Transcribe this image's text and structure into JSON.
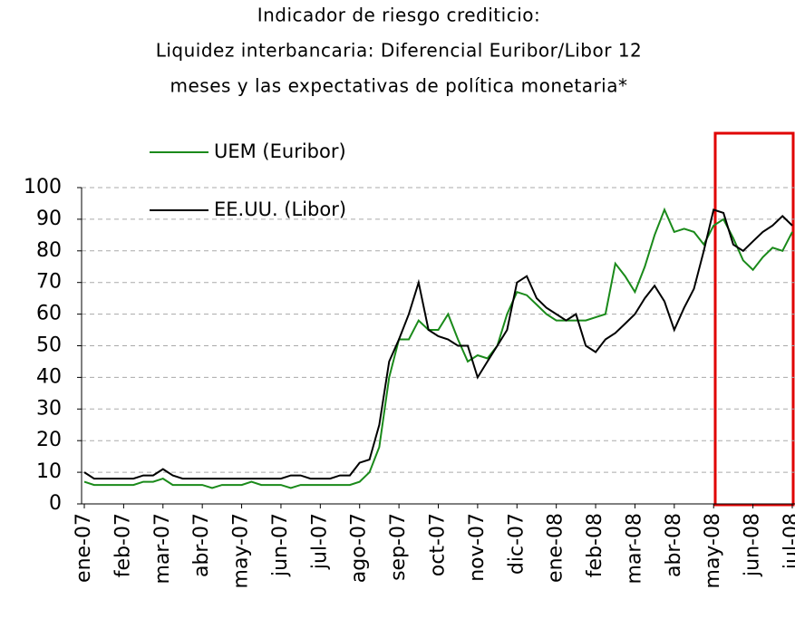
{
  "chart_data": {
    "type": "line",
    "title": [
      "Indicador de riesgo crediticio:",
      "Liquidez interbancaria: Diferencial Euribor/Libor 12",
      "meses y las expectativas de política monetaria*"
    ],
    "categories": [
      "ene-07",
      null,
      null,
      null,
      "feb-07",
      null,
      null,
      null,
      "mar-07",
      null,
      null,
      null,
      "abr-07",
      null,
      null,
      null,
      "may-07",
      null,
      null,
      null,
      "jun-07",
      null,
      null,
      null,
      "jul-07",
      null,
      null,
      null,
      "ago-07",
      null,
      null,
      null,
      "sep-07",
      null,
      null,
      null,
      "oct-07",
      null,
      null,
      null,
      "nov-07",
      null,
      null,
      null,
      "dic-07",
      null,
      null,
      null,
      "ene-08",
      null,
      null,
      null,
      "feb-08",
      null,
      null,
      null,
      "mar-08",
      null,
      null,
      null,
      "abr-08",
      null,
      null,
      null,
      "may-08",
      null,
      null,
      null,
      "jun-08",
      null,
      null,
      null,
      "jul-08"
    ],
    "series": [
      {
        "name": "UEM (Euribor)",
        "color": "#1a8a1a",
        "values": [
          7,
          6,
          6,
          6,
          6,
          6,
          7,
          7,
          8,
          6,
          6,
          6,
          6,
          5,
          6,
          6,
          6,
          7,
          6,
          6,
          6,
          5,
          6,
          6,
          6,
          6,
          6,
          6,
          7,
          10,
          18,
          40,
          52,
          52,
          58,
          55,
          55,
          60,
          52,
          45,
          47,
          46,
          50,
          60,
          67,
          66,
          63,
          60,
          58,
          58,
          58,
          58,
          59,
          60,
          76,
          72,
          67,
          75,
          85,
          93,
          86,
          87,
          86,
          82,
          88,
          90,
          84,
          77,
          74,
          78,
          81,
          80,
          86
        ]
      },
      {
        "name": "EE.UU. (Libor)",
        "color": "#000000",
        "values": [
          10,
          8,
          8,
          8,
          8,
          8,
          9,
          9,
          11,
          9,
          8,
          8,
          8,
          8,
          8,
          8,
          8,
          8,
          8,
          8,
          8,
          9,
          9,
          8,
          8,
          8,
          9,
          9,
          13,
          14,
          25,
          45,
          52,
          60,
          70,
          55,
          53,
          52,
          50,
          50,
          40,
          45,
          50,
          55,
          70,
          72,
          65,
          62,
          60,
          58,
          60,
          50,
          48,
          52,
          54,
          57,
          60,
          65,
          69,
          64,
          55,
          62,
          68,
          80,
          93,
          92,
          82,
          80,
          83,
          86,
          88,
          91,
          88
        ]
      }
    ],
    "ylim": [
      0,
      100
    ],
    "yticks": [
      0,
      10,
      20,
      30,
      40,
      50,
      60,
      70,
      80,
      90,
      100
    ],
    "grid": true,
    "legend": "upper left"
  }
}
